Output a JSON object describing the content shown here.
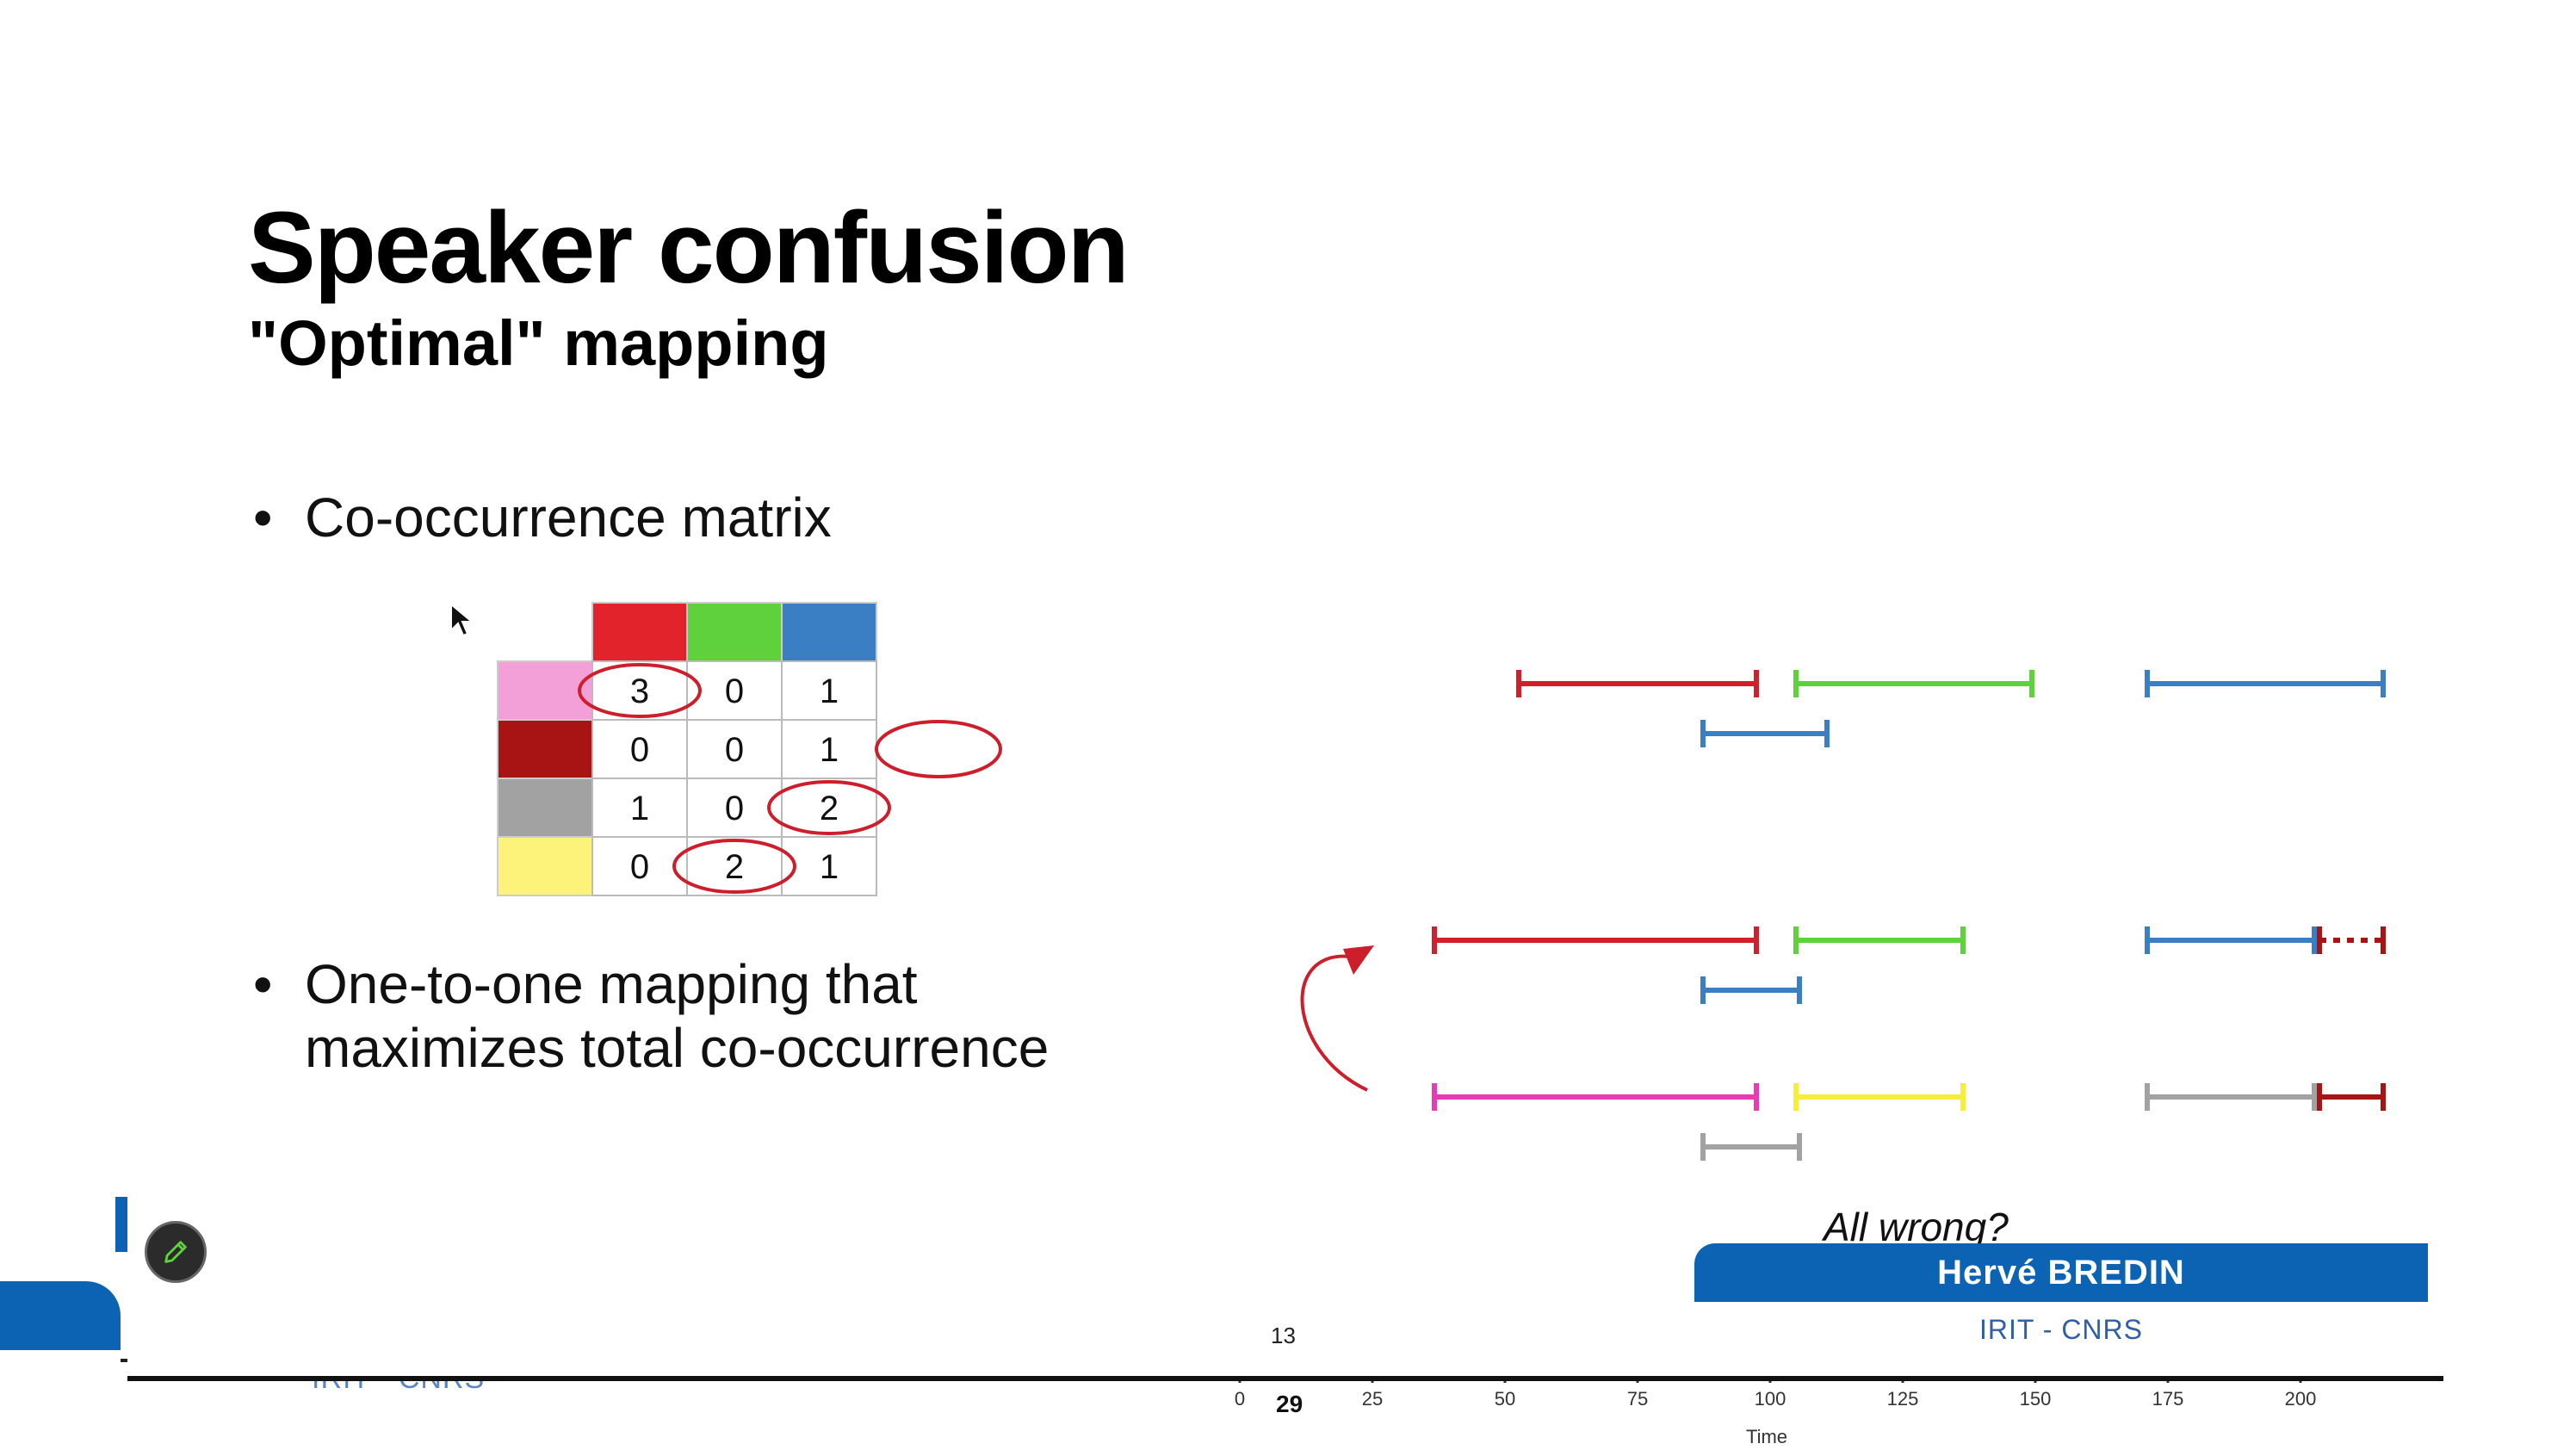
{
  "slide": {
    "title": "Speaker confusion",
    "subtitle": "\"Optimal\" mapping",
    "bullets": [
      {
        "text": "Co-occurrence matrix"
      },
      {
        "line1": "One-to-one mapping that",
        "line2": "maximizes total co-occurrence"
      }
    ],
    "bullet_symbol": "•",
    "slide_number": "13",
    "caption": "All wrong?"
  },
  "speaker": {
    "name": "Hervé BREDIN",
    "affiliation": "IRIT - CNRS"
  },
  "background": {
    "affiliation_partial": "IRIT - CNRS",
    "axis_label": "Time",
    "axis_ticks": [
      "0",
      "25",
      "50",
      "75",
      "100",
      "125",
      "150",
      "175",
      "200"
    ],
    "time_overlay": "29"
  },
  "matrix": {
    "column_colors": [
      "#e3232b",
      "#5ed13c",
      "#3a7fc3"
    ],
    "row_colors": [
      "#f4a0d8",
      "#a81313",
      "#a2a2a2",
      "#fdf27a"
    ],
    "rows": [
      [
        "3",
        "0",
        "1"
      ],
      [
        "0",
        "0",
        "1"
      ],
      [
        "1",
        "0",
        "2"
      ],
      [
        "0",
        "2",
        "1"
      ]
    ],
    "circled": [
      [
        0,
        0
      ],
      [
        2,
        2
      ],
      [
        3,
        1
      ]
    ]
  },
  "colors": {
    "banner": "#0c63b3",
    "annotation": "#cc1f2b"
  },
  "icons": {
    "pen_button": "pencil-icon",
    "cursor": "mouse-pointer-icon"
  }
}
